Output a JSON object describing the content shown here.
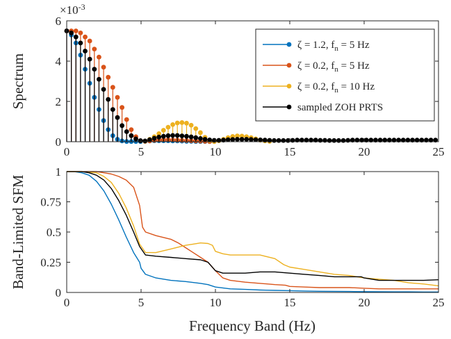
{
  "colors": {
    "blue": "#0072BD",
    "orange": "#D95319",
    "yellow": "#EDB120",
    "black": "#000000",
    "axis": "#262626"
  },
  "chart_data": [
    {
      "type": "stem",
      "ylabel": "Spectrum",
      "xlim": [
        0,
        25
      ],
      "ylim": [
        0,
        0.006
      ],
      "y_exponent_label": "×10",
      "y_exponent_power": "-3",
      "xticks": [
        "0",
        "5",
        "10",
        "15",
        "20",
        "25"
      ],
      "yticks": [
        "0",
        "2",
        "4",
        "6"
      ],
      "legend": {
        "position": "top-right",
        "entries": [
          {
            "pre": "ζ = 1.2, f",
            "sub": "n",
            "post": " = 5 Hz",
            "color": "#0072BD"
          },
          {
            "pre": "ζ = 0.2, f",
            "sub": "n",
            "post": " = 5 Hz",
            "color": "#D95319"
          },
          {
            "pre": "ζ = 0.2, f",
            "sub": "n",
            "post": " = 10 Hz",
            "color": "#EDB120"
          },
          {
            "pre": "sampled ZOH PRTS",
            "sub": "",
            "post": "",
            "color": "#000000"
          }
        ]
      },
      "series": [
        {
          "name": "ζ = 1.2, f_n = 5 Hz",
          "color": "#0072BD",
          "x": [
            0,
            0.31,
            0.62,
            0.93,
            1.24,
            1.55,
            1.86,
            2.17,
            2.48,
            2.79,
            3.1,
            3.41,
            3.72,
            4.03,
            4.34,
            4.65,
            4.96,
            5.27,
            5.58,
            5.89,
            6.2,
            6.51,
            6.82,
            7.13,
            7.44,
            7.75,
            8.06,
            8.37,
            8.68,
            8.99,
            9.3,
            9.61,
            9.92
          ],
          "y": [
            0.0055,
            0.0053,
            0.0049,
            0.0043,
            0.0036,
            0.0029,
            0.0022,
            0.0016,
            0.00105,
            0.0006,
            0.0003,
            0.00012,
            4e-05,
            1e-05,
            1e-05,
            1e-05,
            1e-05,
            2e-05,
            4e-05,
            5e-05,
            5e-05,
            5e-05,
            5e-05,
            4e-05,
            4e-05,
            3e-05,
            2e-05,
            2e-05,
            1e-05,
            1e-05,
            1e-05,
            1e-05,
            1e-05
          ]
        },
        {
          "name": "ζ = 0.2, f_n = 5 Hz",
          "color": "#D95319",
          "x": [
            0,
            0.31,
            0.62,
            0.93,
            1.24,
            1.55,
            1.86,
            2.17,
            2.48,
            2.79,
            3.1,
            3.41,
            3.72,
            4.03,
            4.34,
            4.65,
            4.96,
            5.27,
            5.58,
            5.89,
            6.2,
            6.51,
            6.82,
            7.13,
            7.44,
            7.75,
            8.06,
            8.37,
            8.68,
            8.99,
            9.3,
            9.61,
            9.92
          ],
          "y": [
            0.0055,
            0.0055,
            0.0055,
            0.0054,
            0.0052,
            0.005,
            0.0046,
            0.0042,
            0.0037,
            0.0032,
            0.0027,
            0.0022,
            0.0017,
            0.0011,
            0.0006,
            0.00025,
            5e-05,
            2e-05,
            4e-05,
            7e-05,
            9e-05,
            0.0001,
            0.0001,
            9e-05,
            8e-05,
            7e-05,
            6e-05,
            5e-05,
            4e-05,
            3e-05,
            2e-05,
            1e-05,
            1e-05
          ]
        },
        {
          "name": "ζ = 0.2, f_n = 10 Hz",
          "color": "#EDB120",
          "x": [
            5.27,
            5.58,
            5.89,
            6.2,
            6.51,
            6.82,
            7.13,
            7.44,
            7.75,
            8.06,
            8.37,
            8.68,
            8.99,
            9.3,
            9.61,
            9.92,
            10.23,
            10.54,
            10.85,
            11.16,
            11.47,
            11.78,
            12.09,
            12.4,
            12.71,
            13.02,
            13.33,
            13.64
          ],
          "y": [
            3e-05,
            0.00012,
            0.00025,
            0.0004,
            0.00057,
            0.00072,
            0.00085,
            0.00093,
            0.00095,
            0.00092,
            0.00082,
            0.00065,
            0.00045,
            0.00022,
            6e-05,
            1e-05,
            5e-05,
            0.00012,
            0.0002,
            0.00026,
            0.00029,
            0.00028,
            0.00025,
            0.0002,
            0.00014,
            8e-05,
            4e-05,
            2e-05
          ]
        },
        {
          "name": "sampled ZOH PRTS",
          "color": "#000000",
          "x": [
            0,
            0.31,
            0.62,
            0.93,
            1.24,
            1.55,
            1.86,
            2.17,
            2.48,
            2.79,
            3.1,
            3.41,
            3.72,
            4.03,
            4.34,
            4.65,
            4.96,
            5.27,
            5.58,
            5.89,
            6.2,
            6.51,
            6.82,
            7.13,
            7.44,
            7.75,
            8.06,
            8.37,
            8.68,
            8.99,
            9.3,
            9.61,
            9.92,
            10.23,
            10.54,
            10.85,
            11.16,
            11.47,
            11.78,
            12.09,
            12.4,
            12.71,
            13.02,
            13.33,
            13.64,
            13.95,
            14.26,
            14.57,
            14.88,
            15.19,
            15.5,
            15.81,
            16.12,
            16.43,
            16.74,
            17.05,
            17.36,
            17.67,
            17.98,
            18.29,
            18.6,
            18.91,
            19.22,
            19.53,
            19.84,
            20.15,
            20.46,
            20.77,
            21.08,
            21.39,
            21.7,
            22.01,
            22.32,
            22.63,
            22.94,
            23.25,
            23.56,
            23.87,
            24.18,
            24.49,
            24.8
          ],
          "y": [
            0.0055,
            0.0054,
            0.0052,
            0.0049,
            0.0045,
            0.0041,
            0.0036,
            0.0031,
            0.0026,
            0.0021,
            0.0016,
            0.0012,
            0.0008,
            0.0005,
            0.0003,
            0.00014,
            5e-05,
            4e-05,
            0.0001,
            0.00017,
            0.00023,
            0.00027,
            0.0003,
            0.00031,
            0.00031,
            0.00029,
            0.00027,
            0.00024,
            0.0002,
            0.00016,
            0.00012,
            9e-05,
            7e-05,
            7e-05,
            8e-05,
            0.0001,
            0.00011,
            0.00012,
            0.00012,
            0.00012,
            0.00011,
            0.0001,
            9e-05,
            8e-05,
            7e-05,
            6e-05,
            6e-05,
            6e-05,
            6e-05,
            7e-05,
            8e-05,
            8e-05,
            8e-05,
            8e-05,
            8e-05,
            7e-05,
            7e-05,
            6e-05,
            6e-05,
            6e-05,
            6e-05,
            7e-05,
            8e-05,
            8e-05,
            8e-05,
            8e-05,
            8e-05,
            8e-05,
            8e-05,
            8e-05,
            8e-05,
            8e-05,
            8e-05,
            8e-05,
            8e-05,
            8e-05,
            8e-05,
            8e-05,
            8e-05,
            8e-05,
            8e-05
          ]
        }
      ]
    },
    {
      "type": "line",
      "xlabel": "Frequency Band (Hz)",
      "ylabel": "Band-Limited SFM",
      "xlim": [
        0,
        25
      ],
      "ylim": [
        0,
        1
      ],
      "xticks": [
        "0",
        "5",
        "10",
        "15",
        "20",
        "25"
      ],
      "yticks": [
        "0",
        "0.25",
        "0.5",
        "0.75",
        "1"
      ],
      "series": [
        {
          "name": "ζ = 1.2, f_n = 5 Hz",
          "color": "#0072BD",
          "x": [
            0,
            0.5,
            1,
            1.5,
            2,
            2.5,
            3,
            3.5,
            4,
            4.5,
            4.9,
            5,
            5.3,
            6,
            7,
            8,
            9,
            9.5,
            10,
            11,
            12,
            13,
            14,
            15,
            16,
            17,
            18,
            19,
            20,
            21,
            22,
            23,
            24,
            25
          ],
          "y": [
            1,
            1,
            0.99,
            0.97,
            0.92,
            0.84,
            0.73,
            0.6,
            0.46,
            0.33,
            0.25,
            0.2,
            0.15,
            0.12,
            0.1,
            0.09,
            0.075,
            0.065,
            0.045,
            0.03,
            0.025,
            0.02,
            0.017,
            0.015,
            0.012,
            0.01,
            0.009,
            0.008,
            0.007,
            0.006,
            0.005,
            0.005,
            0.004,
            0.004
          ]
        },
        {
          "name": "ζ = 0.2, f_n = 5 Hz",
          "color": "#D95319",
          "x": [
            0,
            1,
            2,
            2.5,
            3,
            3.5,
            4,
            4.5,
            4.9,
            5.1,
            5.3,
            6,
            7,
            7.5,
            8,
            8.5,
            9,
            9.5,
            10,
            10.5,
            11,
            12,
            13,
            14,
            14.7,
            15,
            16,
            17,
            18,
            19,
            20,
            21,
            22,
            23,
            24,
            25
          ],
          "y": [
            1,
            1,
            1,
            0.99,
            0.98,
            0.96,
            0.93,
            0.87,
            0.72,
            0.54,
            0.5,
            0.47,
            0.44,
            0.41,
            0.37,
            0.33,
            0.29,
            0.25,
            0.18,
            0.12,
            0.1,
            0.085,
            0.075,
            0.065,
            0.06,
            0.05,
            0.045,
            0.04,
            0.04,
            0.04,
            0.035,
            0.03,
            0.03,
            0.03,
            0.03,
            0.03
          ]
        },
        {
          "name": "ζ = 0.2, f_n = 10 Hz",
          "color": "#EDB120",
          "x": [
            0,
            1,
            2,
            2.5,
            3,
            3.5,
            4,
            4.5,
            4.9,
            5.3,
            6,
            7,
            8,
            8.5,
            9,
            9.5,
            9.8,
            10,
            10.5,
            11,
            12,
            13,
            14,
            14.6,
            15,
            16,
            17,
            18,
            19,
            20,
            21,
            22,
            23,
            24,
            25
          ],
          "y": [
            1,
            1,
            0.99,
            0.96,
            0.91,
            0.82,
            0.7,
            0.55,
            0.4,
            0.33,
            0.33,
            0.36,
            0.39,
            0.4,
            0.41,
            0.405,
            0.39,
            0.34,
            0.32,
            0.31,
            0.31,
            0.31,
            0.28,
            0.23,
            0.21,
            0.19,
            0.17,
            0.15,
            0.14,
            0.12,
            0.11,
            0.1,
            0.08,
            0.07,
            0.055
          ]
        },
        {
          "name": "sampled ZOH PRTS",
          "color": "#000000",
          "x": [
            0,
            1,
            1.5,
            2,
            2.5,
            3,
            3.5,
            4,
            4.5,
            4.9,
            5.3,
            6,
            7,
            8,
            9,
            9.5,
            10,
            10.5,
            11,
            12,
            13,
            14,
            15,
            16,
            17,
            18,
            19,
            19.8,
            20,
            21,
            22,
            23,
            24,
            25
          ],
          "y": [
            1,
            1,
            0.99,
            0.97,
            0.93,
            0.86,
            0.76,
            0.64,
            0.5,
            0.38,
            0.31,
            0.3,
            0.29,
            0.28,
            0.27,
            0.25,
            0.18,
            0.16,
            0.16,
            0.16,
            0.17,
            0.17,
            0.16,
            0.15,
            0.14,
            0.13,
            0.13,
            0.13,
            0.12,
            0.1,
            0.1,
            0.1,
            0.1,
            0.105
          ]
        }
      ]
    }
  ]
}
